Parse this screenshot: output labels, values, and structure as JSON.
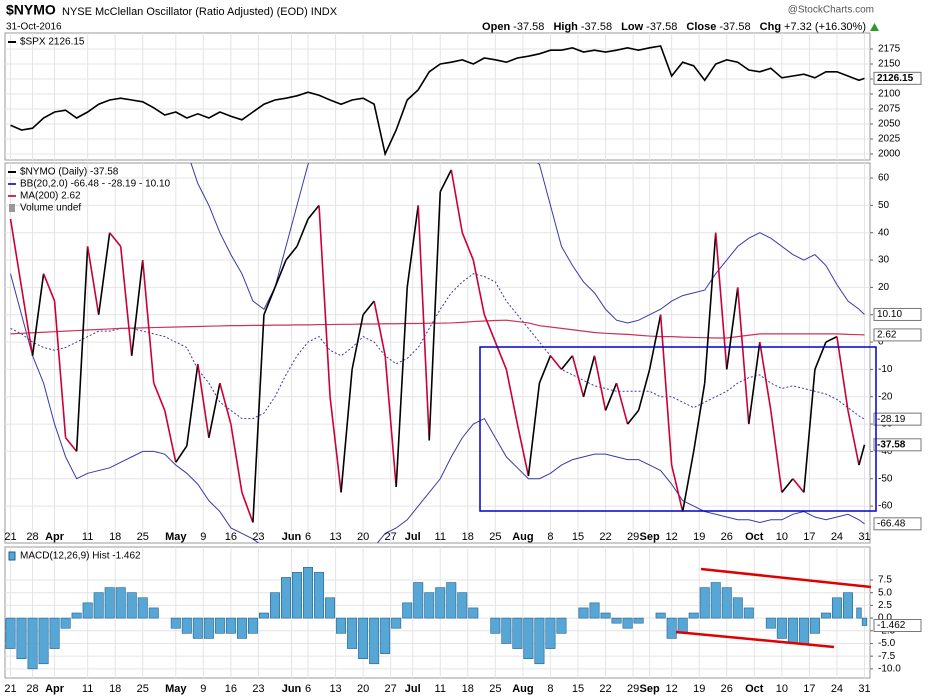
{
  "header": {
    "symbol": "$NYMO",
    "title": "NYSE McClellan Oscillator (Ratio Adjusted) (EOD) INDX",
    "date": "31-Oct-2016",
    "quote": [
      {
        "label": "Open",
        "value": "-37.58"
      },
      {
        "label": "High",
        "value": "-37.58"
      },
      {
        "label": "Low",
        "value": "-37.58"
      },
      {
        "label": "Close",
        "value": "-37.58"
      },
      {
        "label": "Chg",
        "value": "+7.32 (+16.30%)"
      }
    ],
    "watermark": "@StockCharts.com"
  },
  "x_axis": {
    "xlim": [
      -1,
      156
    ],
    "x": [
      0,
      2,
      4,
      6,
      8,
      10,
      12,
      14,
      16,
      18,
      20,
      22,
      24,
      26,
      28,
      30,
      32,
      34,
      36,
      38,
      40,
      42,
      44,
      46,
      48,
      50,
      52,
      54,
      56,
      58,
      60,
      62,
      64,
      66,
      68,
      70,
      72,
      74,
      76,
      78,
      80,
      82,
      84,
      86,
      88,
      90,
      92,
      94,
      96,
      98,
      100,
      102,
      104,
      106,
      108,
      110,
      112,
      114,
      116,
      118,
      120,
      122,
      124,
      126,
      128,
      130,
      132,
      134,
      136,
      138,
      140,
      142,
      144,
      146,
      148,
      150,
      152,
      154,
      155
    ],
    "xticks": [
      {
        "value": 0,
        "label": "21"
      },
      {
        "value": 4,
        "label": "28"
      },
      {
        "value": 8,
        "label": "Apr"
      },
      {
        "value": 14,
        "label": "11"
      },
      {
        "value": 19,
        "label": "18"
      },
      {
        "value": 24,
        "label": "25"
      },
      {
        "value": 30,
        "label": "May"
      },
      {
        "value": 35,
        "label": "9"
      },
      {
        "value": 40,
        "label": "16"
      },
      {
        "value": 45,
        "label": "23"
      },
      {
        "value": 51,
        "label": "Jun"
      },
      {
        "value": 54,
        "label": "6"
      },
      {
        "value": 59,
        "label": "13"
      },
      {
        "value": 64,
        "label": "20"
      },
      {
        "value": 69,
        "label": "27"
      },
      {
        "value": 73,
        "label": "Jul"
      },
      {
        "value": 78,
        "label": "11"
      },
      {
        "value": 83,
        "label": "18"
      },
      {
        "value": 88,
        "label": "25"
      },
      {
        "value": 93,
        "label": "Aug"
      },
      {
        "value": 98,
        "label": "8"
      },
      {
        "value": 103,
        "label": "15"
      },
      {
        "value": 108,
        "label": "22"
      },
      {
        "value": 113,
        "label": "29"
      },
      {
        "value": 116,
        "label": "Sep"
      },
      {
        "value": 120,
        "label": "12"
      },
      {
        "value": 125,
        "label": "19"
      },
      {
        "value": 130,
        "label": "26"
      },
      {
        "value": 135,
        "label": "Oct"
      },
      {
        "value": 140,
        "label": "10"
      },
      {
        "value": 145,
        "label": "17"
      },
      {
        "value": 150,
        "label": "24"
      },
      {
        "value": 155,
        "label": "31"
      }
    ]
  },
  "chart_data": [
    {
      "type": "line",
      "ylim": [
        1990,
        2201.7
      ],
      "yticks": [
        2000,
        2025,
        2050,
        2075,
        2100,
        2125,
        2150,
        2175
      ],
      "grid": true,
      "series": [
        {
          "name": "$SPX 2126.15",
          "color": "#000000",
          "tag": "2126.15",
          "values": [
            2048,
            2040,
            2043,
            2060,
            2070,
            2073,
            2060,
            2070,
            2083,
            2090,
            2093,
            2090,
            2087,
            2077,
            2065,
            2070,
            2060,
            2067,
            2060,
            2070,
            2063,
            2057,
            2070,
            2083,
            2090,
            2093,
            2097,
            2103,
            2098,
            2090,
            2083,
            2090,
            2093,
            2083,
            2000,
            2040,
            2090,
            2107,
            2137,
            2150,
            2153,
            2157,
            2150,
            2160,
            2157,
            2153,
            2160,
            2163,
            2167,
            2173,
            2173,
            2177,
            2170,
            2173,
            2170,
            2173,
            2177,
            2173,
            2177,
            2180,
            2130,
            2153,
            2147,
            2123,
            2150,
            2157,
            2153,
            2140,
            2137,
            2143,
            2127,
            2130,
            2133,
            2127,
            2137,
            2137,
            2130,
            2123,
            2126.15
          ]
        }
      ]
    },
    {
      "type": "line",
      "ylim": [
        -73.5,
        65.5
      ],
      "yticks": [
        60,
        50,
        40,
        30,
        20,
        10,
        0,
        -10,
        -20,
        -30,
        -40,
        -50,
        -60
      ],
      "grid": true,
      "series": [
        {
          "name": "$NYMO (Daily) -37.58",
          "color": "#000000",
          "color_down": "#cc0033",
          "tag": "-37.58",
          "values": [
            45,
            20,
            -5,
            25,
            15,
            -35,
            -40,
            35,
            10,
            40,
            35,
            -5,
            30,
            -15,
            -25,
            -44,
            -38,
            -8,
            -35,
            -15,
            -30,
            -55,
            -66,
            10,
            20,
            30,
            35,
            45,
            50,
            -20,
            -55,
            -10,
            10,
            15,
            -5,
            -53,
            20,
            50,
            -36,
            55,
            63,
            40,
            30,
            10,
            0,
            -10,
            -30,
            -49,
            -15,
            -5,
            -10,
            -5,
            -20,
            -5,
            -25,
            -15,
            -30,
            -25,
            -10,
            10,
            -45,
            -62,
            -40,
            -15,
            40,
            -10,
            20,
            -30,
            0,
            -25,
            -55,
            -50,
            -55,
            -10,
            0,
            2,
            -25,
            -45,
            -37.58
          ]
        },
        {
          "name": "MA(200) 2.62",
          "color": "#cc3355",
          "tag": "2.62",
          "values": [
            3,
            3.2,
            3.4,
            3.6,
            3.8,
            4,
            4.2,
            4.4,
            4.6,
            4.8,
            5,
            5.1,
            5.2,
            5.3,
            5.4,
            5.5,
            5.6,
            5.7,
            5.8,
            5.9,
            6,
            6,
            6.1,
            6.1,
            6.2,
            6.2,
            6.3,
            6.3,
            6.4,
            6.4,
            6.5,
            6.5,
            6.6,
            6.6,
            6.7,
            6.7,
            6.8,
            6.8,
            6.9,
            6.9,
            7,
            7.2,
            7.5,
            7.7,
            7.9,
            8,
            7.5,
            7,
            6,
            5.5,
            5,
            4.5,
            4,
            3.5,
            3.2,
            3,
            2.8,
            2.5,
            2.2,
            2,
            2,
            1.8,
            1.7,
            1.6,
            1.5,
            1.5,
            2,
            2.5,
            3,
            3,
            3,
            3,
            3,
            3,
            3,
            3,
            2.8,
            2.7,
            2.62
          ]
        }
      ],
      "bands": {
        "name": "BB(20,2.0) -66.48 - -28.19 - 10.10",
        "color": "#3a3aa8",
        "lines": [
          {
            "style": "solid",
            "tag": "10.10",
            "values": [
              70,
              70,
              70,
              70,
              70,
              70,
              70,
              70,
              70,
              70,
              70,
              70,
              70,
              70,
              70,
              70,
              70,
              58,
              50,
              40,
              32,
              25,
              15,
              12,
              20,
              35,
              50,
              65,
              75,
              80,
              78,
              75,
              70,
              68,
              70,
              72,
              75,
              70,
              72,
              75,
              78,
              80,
              78,
              75,
              72,
              70,
              70,
              68,
              65,
              50,
              35,
              28,
              22,
              18,
              12,
              8,
              7,
              8,
              10,
              12,
              15,
              17,
              18,
              19,
              25,
              30,
              35,
              38,
              40,
              38,
              35,
              32,
              30,
              32,
              28,
              21,
              15,
              12,
              10.1
            ]
          },
          {
            "style": "dotted",
            "tag": "-28.19",
            "values": [
              5,
              3,
              0,
              -2,
              -3,
              -2,
              0,
              2,
              4,
              4,
              5,
              5,
              4,
              3,
              2,
              0,
              -2,
              -10,
              -15,
              -22,
              -25,
              -28,
              -28,
              -26,
              -20,
              -12,
              -5,
              0,
              2,
              -3,
              -5,
              -2,
              2,
              0,
              -5,
              -8,
              -6,
              -2,
              5,
              12,
              18,
              22,
              25,
              24,
              22,
              15,
              10,
              5,
              0,
              -5,
              -10,
              -12,
              -14,
              -16,
              -17,
              -18,
              -18,
              -18,
              -18,
              -20,
              -20,
              -22,
              -24,
              -22,
              -20,
              -18,
              -15,
              -13,
              -12,
              -15,
              -17,
              -16,
              -17,
              -18,
              -19,
              -21,
              -24,
              -27,
              -28.19
            ]
          },
          {
            "style": "solid",
            "tag": "-66.48",
            "values": [
              25,
              10,
              -5,
              -15,
              -30,
              -42,
              -50,
              -48,
              -47,
              -46,
              -44,
              -42,
              -40,
              -40,
              -41,
              -45,
              -48,
              -52,
              -58,
              -62,
              -68,
              -70,
              -72,
              -75,
              -78,
              -80,
              -80,
              -80,
              -80,
              -80,
              -80,
              -80,
              -80,
              -75,
              -70,
              -68,
              -65,
              -60,
              -55,
              -50,
              -42,
              -35,
              -30,
              -28,
              -35,
              -42,
              -46,
              -50,
              -50,
              -48,
              -45,
              -43,
              -42,
              -41,
              -41,
              -42,
              -43,
              -43,
              -45,
              -47,
              -52,
              -58,
              -60,
              -62,
              -63,
              -64,
              -65,
              -65,
              -66,
              -65,
              -65,
              -63,
              -62,
              -64,
              -65,
              -64,
              -63,
              -65,
              -66.48
            ]
          }
        ]
      },
      "volume_legend": "Volume undef"
    },
    {
      "type": "bar",
      "ylim": [
        -11.8,
        14
      ],
      "yticks": [
        7.5,
        {
          "value": 5,
          "label": "5.0"
        },
        2.5,
        {
          "value": 0,
          "label": "0.0"
        },
        -2.5,
        {
          "value": -5,
          "label": "-5.0"
        },
        -7.5,
        {
          "value": -10,
          "label": "-10.0"
        }
      ],
      "grid": true,
      "series": [
        {
          "name": "MACD(12,26,9) Hist -1.462",
          "color": "#56a7d6",
          "tag": "-1.462",
          "values": [
            -6,
            -8,
            -10,
            -9,
            -6,
            -2,
            1,
            3,
            5,
            6,
            6,
            5,
            4,
            2,
            0,
            -2,
            -3,
            -4,
            -4,
            -3,
            -3,
            -4,
            -3,
            1,
            5,
            8,
            9,
            10,
            9,
            4,
            -3,
            -6,
            -8,
            -9,
            -7,
            -2,
            3,
            7,
            5,
            6,
            7,
            5,
            2,
            0,
            -3,
            -5,
            -6,
            -8,
            -9,
            -6,
            -3,
            0,
            2,
            3,
            1,
            -1,
            -2,
            -1,
            0,
            1,
            -4,
            -3,
            1,
            6,
            7,
            6,
            4,
            2,
            0,
            -2,
            -4,
            -5,
            -5,
            -3,
            1,
            4,
            5,
            2,
            -1.462
          ]
        }
      ]
    }
  ]
}
